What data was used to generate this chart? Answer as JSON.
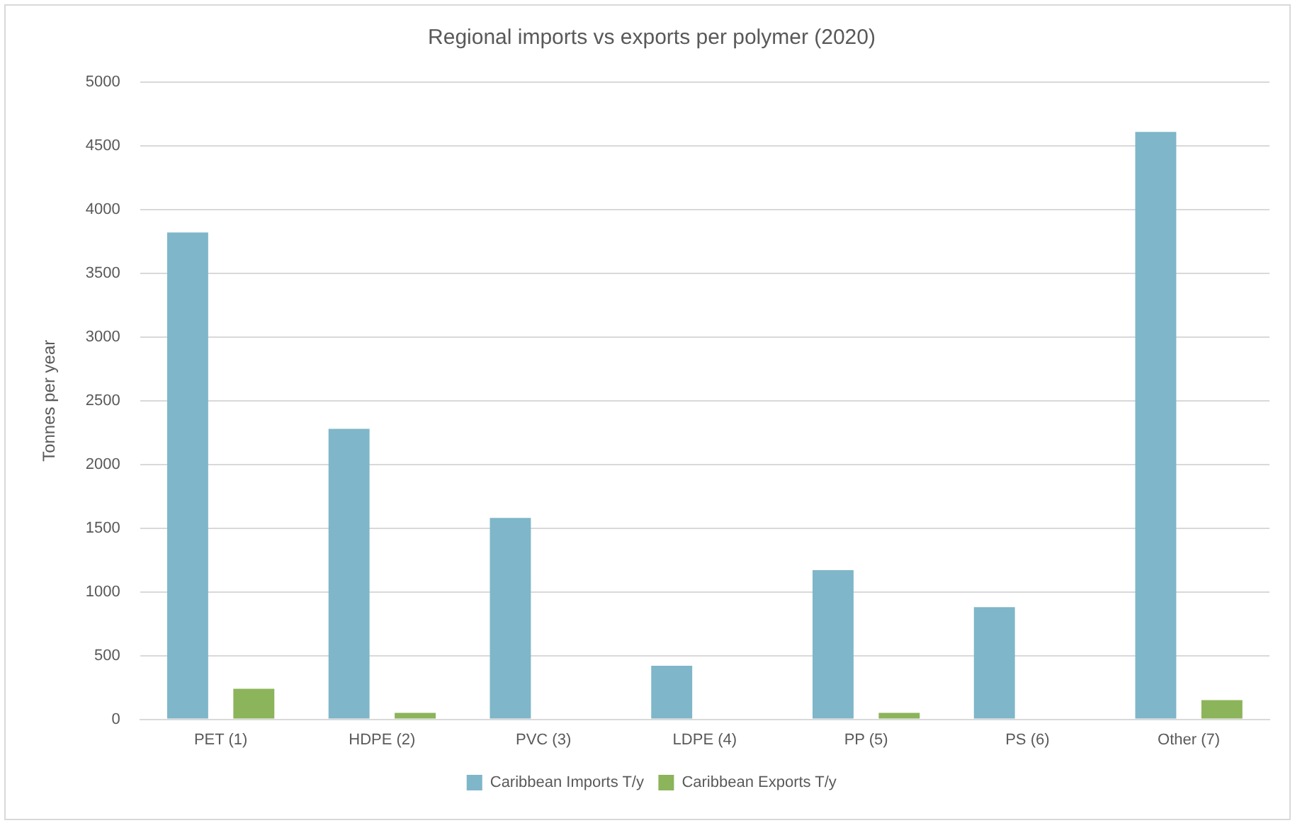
{
  "chart_data": {
    "type": "bar",
    "title": "Regional imports vs exports per polymer (2020)",
    "ylabel": "Tonnes per year",
    "categories": [
      "PET (1)",
      "HDPE (2)",
      "PVC (3)",
      "LDPE (4)",
      "PP (5)",
      "PS (6)",
      "Other (7)"
    ],
    "series": [
      {
        "name": "Caribbean Imports T/y",
        "color": "#7fb6c9",
        "values": [
          3820,
          2280,
          1580,
          420,
          1170,
          880,
          4610
        ]
      },
      {
        "name": "Caribbean Exports T/y",
        "color": "#8cb45a",
        "values": [
          240,
          50,
          0,
          0,
          50,
          0,
          150
        ]
      }
    ],
    "ylim": [
      0,
      5000
    ],
    "yticks": [
      0,
      500,
      1000,
      1500,
      2000,
      2500,
      3000,
      3500,
      4000,
      4500,
      5000
    ],
    "grid": "y",
    "legend": "bottom"
  }
}
